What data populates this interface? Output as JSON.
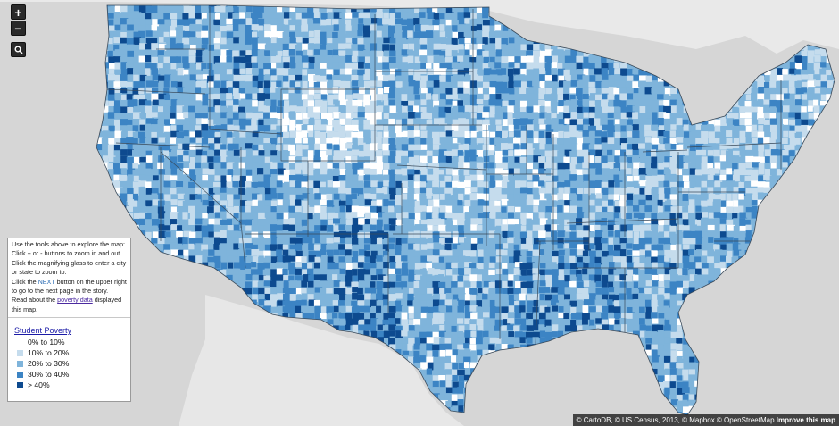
{
  "controls": {
    "zoom_in": "+",
    "zoom_out": "−",
    "search_icon": "magnifier-icon"
  },
  "info": {
    "line1": "Use the tools above to explore the map:",
    "line2": "Click + or - buttons to zoom in and out.",
    "line3": "Click the magnifying glass to enter a city",
    "line4": "or state to zoom to.",
    "line5_pre": "Click the ",
    "line5_link": "NEXT",
    "line5_post": " button on the upper right",
    "line6": "to go to the next page in the story.",
    "line7_pre": "Read about the ",
    "line7_link": "poverty data",
    "line7_post": " displayed",
    "line8": "this map."
  },
  "legend": {
    "title": "Student Poverty",
    "items": [
      {
        "label": "0% to 10%",
        "color": "#ffffff"
      },
      {
        "label": "10% to 20%",
        "color": "#c5dced"
      },
      {
        "label": "20% to 30%",
        "color": "#7fb4db"
      },
      {
        "label": "30% to 40%",
        "color": "#3c84c4"
      },
      {
        "label": "> 40%",
        "color": "#0d4a8f"
      }
    ]
  },
  "attribution": {
    "text": "© CartoDB, © US Census, 2013, © Mapbox © OpenStreetMap ",
    "link": "Improve this map"
  },
  "colors": {
    "land_background": "#e6e6e6",
    "water": "#d4d4d4",
    "state_border": "#3a4a5a",
    "ramp": [
      "#ffffff",
      "#c5dced",
      "#7fb4db",
      "#3c84c4",
      "#0d4a8f"
    ]
  }
}
